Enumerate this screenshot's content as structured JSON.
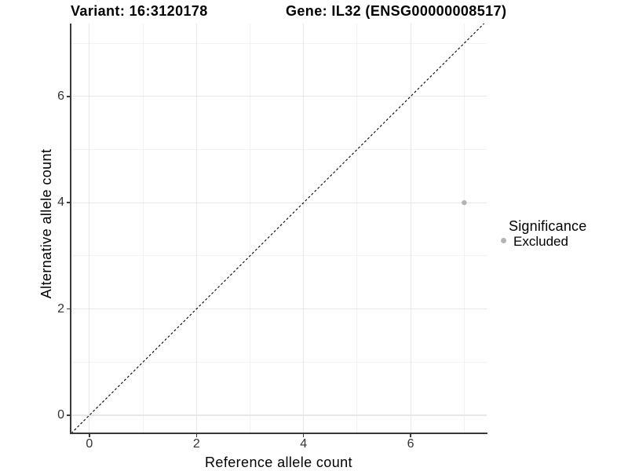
{
  "figure": {
    "title_left": "Variant: 16:3120178",
    "title_right": "Gene: IL32 (ENSG00000008517)"
  },
  "chart_data": {
    "type": "scatter",
    "title_left": "Variant: 16:3120178",
    "title_right": "Gene: IL32 (ENSG00000008517)",
    "xlabel": "Reference allele count",
    "ylabel": "Alternative allele count",
    "xlim": [
      -0.35,
      7.42
    ],
    "ylim": [
      -0.34,
      7.37
    ],
    "x_major_ticks": [
      0,
      2,
      4,
      6
    ],
    "x_minor_ticks": [
      1,
      3,
      5,
      7
    ],
    "y_major_ticks": [
      0,
      2,
      4,
      6
    ],
    "y_minor_ticks": [
      1,
      3,
      5,
      7
    ],
    "grid": "major and minor gridlines on white panel",
    "legend": {
      "title": "Significance",
      "position": "right",
      "items": [
        {
          "label": "Excluded",
          "color": "#b3b3b3"
        }
      ]
    },
    "series": [
      {
        "name": "Excluded",
        "color": "#b3b3b3",
        "points": [
          {
            "x": 7,
            "y": 4
          }
        ]
      }
    ],
    "identity_line": {
      "equation": "y = x",
      "style": "dashed",
      "color": "#000000"
    }
  },
  "colors": {
    "background": "#ffffff",
    "grid_major": "#e7e7e7",
    "grid_minor": "#f2f2f2",
    "axis_line": "#3a3a3a",
    "tick_text": "#333333",
    "point": "#b3b3b3",
    "identity_line": "#000000"
  }
}
